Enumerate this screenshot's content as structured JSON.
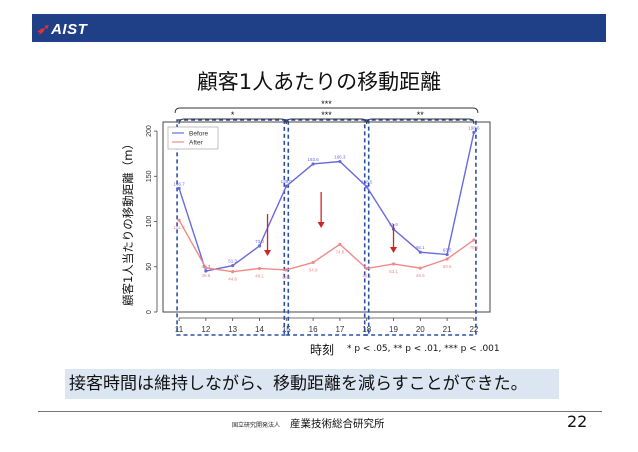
{
  "header": {
    "logo_text": "AIST",
    "bar_color": "#1f3f86",
    "logo_accent": "#e0303a"
  },
  "title": "顧客1人あたりの移動距離",
  "caption": "接客時間は維持しながら、移動距離を減らすことができた。",
  "footer": {
    "org_small": "国立研究開発法人",
    "org": "産業技術総合研究所",
    "page": "22"
  },
  "chart_data": {
    "type": "line",
    "x": [
      11,
      12,
      13,
      14,
      15,
      16,
      17,
      18,
      19,
      20,
      21,
      22
    ],
    "series": [
      {
        "name": "Before",
        "color": "#6a6ae0",
        "values": [
          136.7,
          45.3,
          51.3,
          73.0,
          139.0,
          163.6,
          166.3,
          138.5,
          91.6,
          66.1,
          63.5,
          198.6
        ]
      },
      {
        "name": "After",
        "color": "#f08a8a",
        "values": [
          101.5,
          48.8,
          44.6,
          48.1,
          46.5,
          54.8,
          74.8,
          48.1,
          53.1,
          48.5,
          58.6,
          79.6
        ]
      }
    ],
    "xlabel": "時刻",
    "ylabel": "顧客1人当たりの移動距離（m）",
    "xticks": [
      "11",
      "12",
      "13",
      "14",
      "15",
      "16",
      "17",
      "18",
      "19",
      "20",
      "21",
      "22"
    ],
    "yticks": [
      "0",
      "50",
      "100",
      "150",
      "200"
    ],
    "ylim": [
      0,
      210
    ],
    "legend": {
      "position": "top-left",
      "entries": [
        "Before",
        "After"
      ]
    },
    "significance": [
      {
        "label": "***",
        "from": 11,
        "to": 22
      },
      {
        "label": "*",
        "from": 11,
        "to": 15
      },
      {
        "label": "***",
        "from": 15,
        "to": 18
      },
      {
        "label": "**",
        "from": 18,
        "to": 22
      }
    ],
    "annotation": "* p < .05, ** p < .01, *** p < .001"
  }
}
